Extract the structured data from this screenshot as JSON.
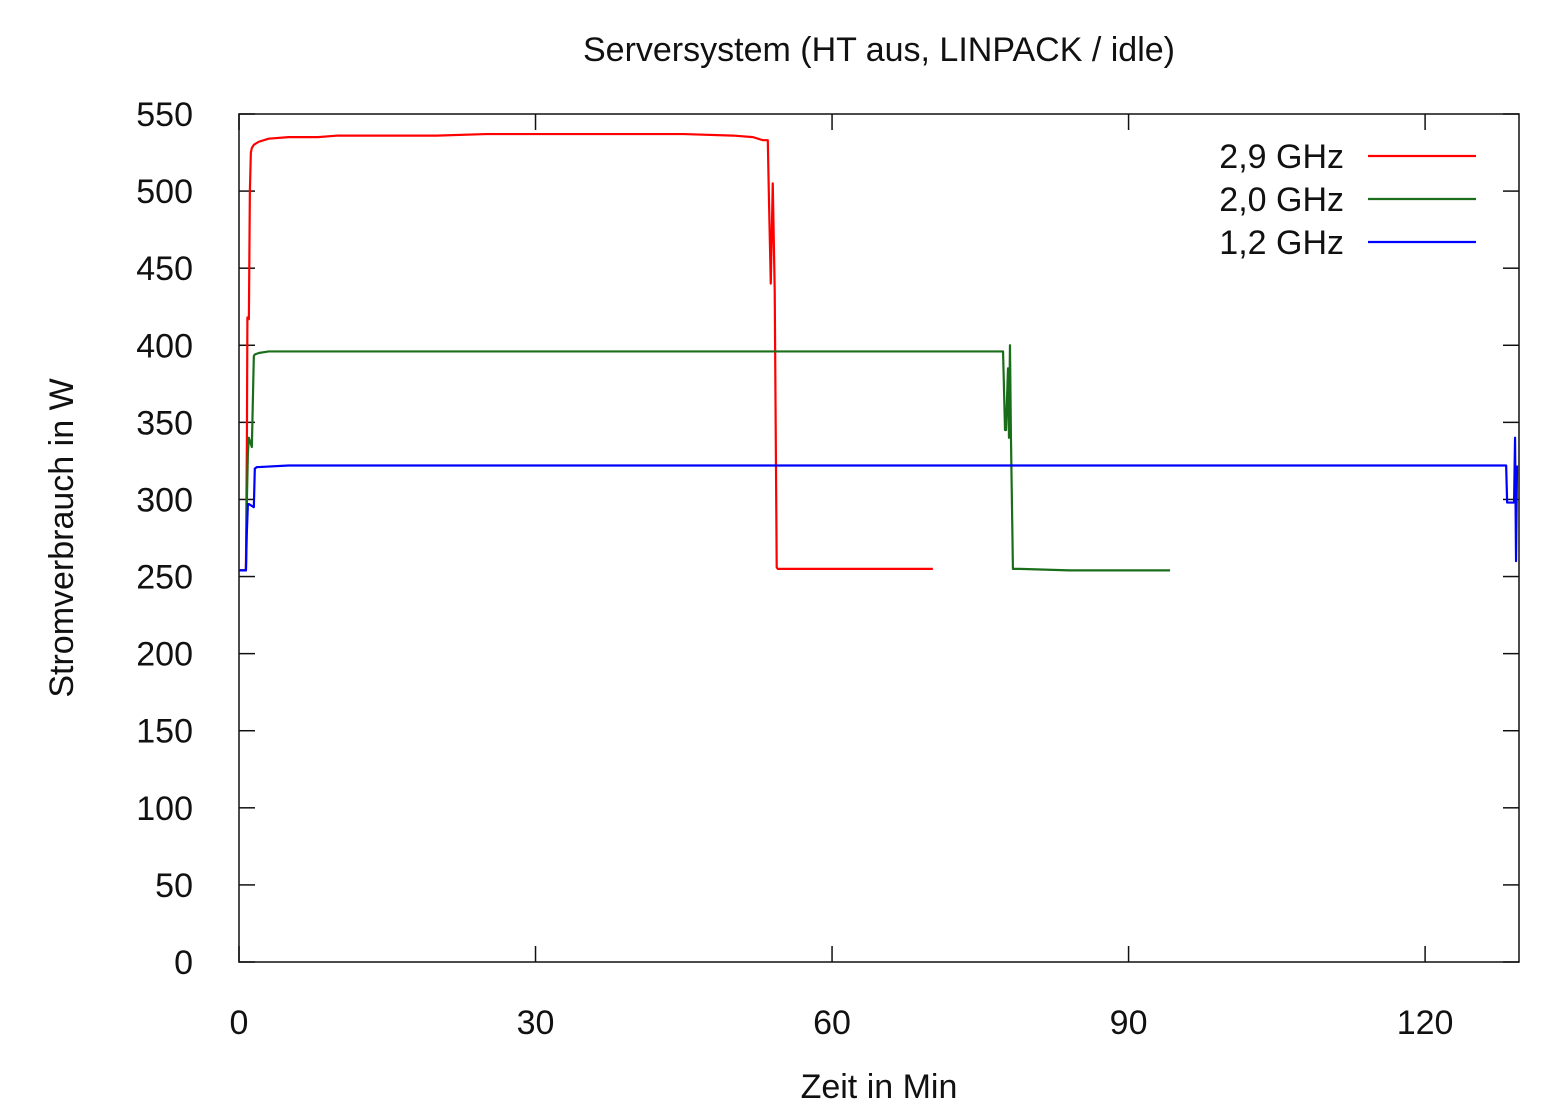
{
  "chart_data": {
    "type": "line",
    "title": "Serversystem (HT aus, LINPACK / idle)",
    "xlabel": "Zeit in Min",
    "ylabel": "Stromverbrauch in W",
    "xlim": [
      0,
      129.5
    ],
    "ylim": [
      0,
      550
    ],
    "x_ticks": [
      0,
      30,
      60,
      90,
      120
    ],
    "x_tick_labels": [
      "0",
      "30",
      "60",
      "90",
      "120"
    ],
    "y_ticks": [
      0,
      50,
      100,
      150,
      200,
      250,
      300,
      350,
      400,
      450,
      500,
      550
    ],
    "y_tick_labels": [
      "0",
      "50",
      "100",
      "150",
      "200",
      "250",
      "300",
      "350",
      "400",
      "450",
      "500",
      "550"
    ],
    "grid": false,
    "legend_position": "top-right",
    "series": [
      {
        "name": "2,9 GHz",
        "color": "#ff0000",
        "x": [
          0,
          0.7,
          0.8,
          0.85,
          1.0,
          1.1,
          1.2,
          1.3,
          1.5,
          2.0,
          3.0,
          5.0,
          8.0,
          10.0,
          15.0,
          20.0,
          25.0,
          30.0,
          35.0,
          40.0,
          45.0,
          50.0,
          52.0,
          53.0,
          53.5,
          53.6,
          53.8,
          54.0,
          54.2,
          54.4,
          54.5,
          54.6,
          55.0,
          58.0,
          62.0,
          66.0,
          70.2
        ],
        "y": [
          254,
          254,
          340,
          418,
          417,
          500,
          525,
          528,
          530,
          532,
          534,
          535,
          535,
          536,
          536,
          536,
          537,
          537,
          537,
          537,
          537,
          536,
          535,
          533,
          533,
          500,
          440,
          505,
          435,
          256,
          255,
          255,
          255,
          255,
          255,
          255,
          255
        ]
      },
      {
        "name": "2,0 GHz",
        "color": "#1a6e1a",
        "x": [
          0,
          0.7,
          0.8,
          0.9,
          1.0,
          1.3,
          1.5,
          1.6,
          2.0,
          3.0,
          5.0,
          10.0,
          20.0,
          30.0,
          40.0,
          50.0,
          60.0,
          70.0,
          75.0,
          77.0,
          77.3,
          77.5,
          77.6,
          77.8,
          77.9,
          78.0,
          78.1,
          78.3,
          78.5,
          79.0,
          84.0,
          90.0,
          94.2
        ],
        "y": [
          254,
          254,
          300,
          330,
          340,
          334,
          393,
          394,
          395,
          396,
          396,
          396,
          396,
          396,
          396,
          396,
          396,
          396,
          396,
          396,
          396,
          345,
          345,
          385,
          340,
          400,
          340,
          255,
          255,
          255,
          254,
          254,
          254
        ]
      },
      {
        "name": "1,2 GHz",
        "color": "#0000ff",
        "x": [
          0,
          0.7,
          0.8,
          0.9,
          1.0,
          1.5,
          1.6,
          1.8,
          2.0,
          5.0,
          10.0,
          20.0,
          30.0,
          40.0,
          50.0,
          60.0,
          70.0,
          80.0,
          90.0,
          100.0,
          110.0,
          120.0,
          127.0,
          128.2,
          128.3,
          128.5,
          128.7,
          129.0,
          129.1,
          129.2,
          129.3
        ],
        "y": [
          254,
          254,
          280,
          297,
          297,
          295,
          320,
          321,
          321,
          322,
          322,
          322,
          322,
          322,
          322,
          322,
          322,
          322,
          322,
          322,
          322,
          322,
          322,
          322,
          298,
          298,
          298,
          298,
          340,
          260,
          322
        ]
      }
    ]
  }
}
